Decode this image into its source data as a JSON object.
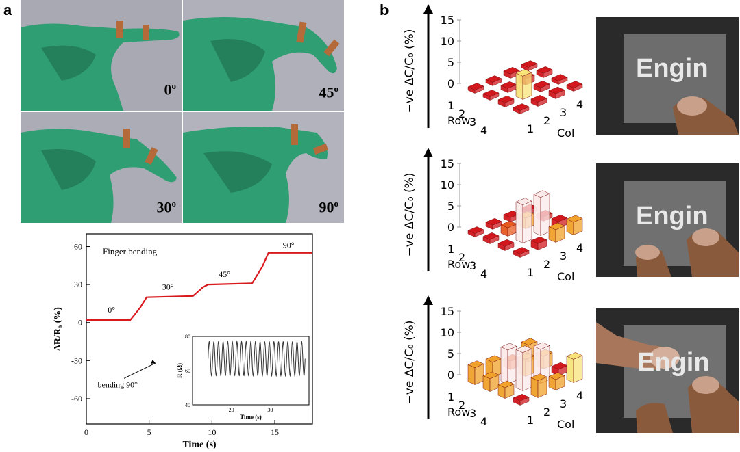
{
  "panel_a": {
    "letter": "a",
    "photos": [
      {
        "angle": "0",
        "deg": "o"
      },
      {
        "angle": "45",
        "deg": "o"
      },
      {
        "angle": "30",
        "deg": "o"
      },
      {
        "angle": "90",
        "deg": "o"
      }
    ],
    "chart": {
      "type": "line",
      "annotation_title": "Finger bending",
      "xlabel": "Time (s)",
      "ylabel": "ΔR/R₀ (%)",
      "xlim": [
        0,
        18
      ],
      "ylim": [
        -80,
        70
      ],
      "xticks": [
        "0",
        "5",
        "10",
        "15"
      ],
      "yticks": [
        "60",
        "30",
        "0",
        "-30",
        "-60"
      ],
      "step_labels": [
        "0°",
        "30°",
        "45°",
        "90°"
      ],
      "arrow_label": "bending 90°",
      "series": [
        {
          "x": [
            0,
            3.5,
            4.3,
            4.8,
            8.5,
            9.3,
            9.7,
            13.2,
            14.0,
            14.5,
            18
          ],
          "y": [
            2,
            2,
            12,
            20,
            21,
            28,
            30,
            31,
            44,
            55,
            55
          ]
        }
      ],
      "inset": {
        "type": "line",
        "xlabel": "Time (s)",
        "ylabel": "R (Ω)",
        "xlim": [
          10,
          40
        ],
        "ylim": [
          40,
          80
        ],
        "xticks": [
          "20",
          "30"
        ],
        "yticks": [
          "80",
          "60",
          "40"
        ],
        "cycles": 21,
        "y_min": 57,
        "y_max": 77
      }
    }
  },
  "panel_b": {
    "letter": "b",
    "ylabel": "−ve ΔC/C₀ (%)",
    "zticks": [
      "15",
      "10",
      "5",
      "0"
    ],
    "row_label": "Row",
    "col_label": "Col",
    "axis_ticks": [
      "1",
      "2",
      "3",
      "4"
    ],
    "screen_text": "Engin",
    "charts": [
      {
        "type": "bar3d",
        "values": [
          [
            0.8,
            0.8,
            1.0,
            0.8
          ],
          [
            0.8,
            1.0,
            1.5,
            1.0
          ],
          [
            1.0,
            5.5,
            1.0,
            0.8
          ],
          [
            0.8,
            1.0,
            1.2,
            0.8
          ]
        ]
      },
      {
        "type": "bar3d",
        "values": [
          [
            0.8,
            1.0,
            1.0,
            0.8
          ],
          [
            1.0,
            2.0,
            2.5,
            1.0
          ],
          [
            1.0,
            9.0,
            9.0,
            1.5
          ],
          [
            0.8,
            1.5,
            3.0,
            3.0
          ]
        ]
      },
      {
        "type": "bar3d",
        "values": [
          [
            4.0,
            3.5,
            2.0,
            4.0
          ],
          [
            3.0,
            8.0,
            4.0,
            3.0
          ],
          [
            2.5,
            9.0,
            8.0,
            1.5
          ],
          [
            1.0,
            4.0,
            2.5,
            5.5
          ]
        ]
      }
    ]
  }
}
